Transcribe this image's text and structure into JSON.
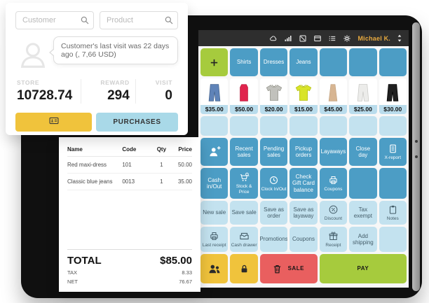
{
  "customer_card": {
    "customer_placeholder": "Customer",
    "product_placeholder": "Product",
    "tooltip": "Customer's last visit was 22 days ago (, 7,66 USD)",
    "stats": [
      {
        "label": "STORE",
        "value": "10728.74"
      },
      {
        "label": "REWARD",
        "value": "294"
      },
      {
        "label": "VISIT",
        "value": "0"
      }
    ],
    "purchases_label": "PURCHASES",
    "card_button_icon": "id-card-icon"
  },
  "receipt": {
    "columns": [
      "Name",
      "Code",
      "Qty",
      "Price"
    ],
    "rows": [
      {
        "name": "Red maxi-dress",
        "code": "101",
        "qty": "1",
        "price": "50.00"
      },
      {
        "name": "Classic blue jeans",
        "code": "0013",
        "qty": "1",
        "price": "35.00"
      }
    ],
    "total_label": "TOTAL",
    "total_value": "$85.00",
    "tax_label": "TAX",
    "tax_value": "8.33",
    "net_label": "NET",
    "net_value": "76.67"
  },
  "tablet": {
    "statusbar": {
      "icons": [
        "cloud",
        "signal",
        "display",
        "dock",
        "list",
        "gear"
      ],
      "user": "Michael K."
    },
    "grid_rows": [
      {
        "tiles": [
          {
            "type": "green",
            "icon": "plus"
          },
          {
            "type": "dark",
            "label": "Shirts"
          },
          {
            "type": "dark",
            "label": "Dresses"
          },
          {
            "type": "dark",
            "label": "Jeans"
          },
          {
            "type": "dark"
          },
          {
            "type": "dark"
          },
          {
            "type": "dark"
          }
        ]
      },
      {
        "tiles": [
          {
            "type": "product",
            "image": "jeans-blue",
            "price": "$35.00"
          },
          {
            "type": "product",
            "image": "dress-red",
            "price": "$50.00"
          },
          {
            "type": "product",
            "image": "polo-gray",
            "price": "$20.00"
          },
          {
            "type": "product",
            "image": "tshirt-yellow",
            "price": "$15.00"
          },
          {
            "type": "product",
            "image": "skirt-beige",
            "price": "$45.00"
          },
          {
            "type": "product",
            "image": "pants-white",
            "price": "$25.00"
          },
          {
            "type": "product",
            "image": "pants-black",
            "price": "$30.00"
          }
        ]
      },
      {
        "tiles": [
          {
            "type": "light"
          },
          {
            "type": "light"
          },
          {
            "type": "light"
          },
          {
            "type": "light"
          },
          {
            "type": "light"
          },
          {
            "type": "light"
          },
          {
            "type": "light"
          }
        ]
      },
      {
        "tiles": [
          {
            "type": "dark",
            "icon": "person-plus",
            "big": true
          },
          {
            "type": "dark",
            "label": "Recent sales"
          },
          {
            "type": "dark",
            "label": "Pending sales"
          },
          {
            "type": "dark",
            "label": "Pickup orders"
          },
          {
            "type": "dark",
            "label": "Layaways"
          },
          {
            "type": "dark",
            "label": "Close day"
          },
          {
            "type": "dark",
            "icon": "document",
            "label": "X-report",
            "labelStyle": "sub"
          }
        ]
      },
      {
        "tiles": [
          {
            "type": "dark",
            "label": "Cash in/Out"
          },
          {
            "type": "dark",
            "icon": "cart-search",
            "label": "Stock & Price",
            "labelStyle": "sub"
          },
          {
            "type": "dark",
            "icon": "clock",
            "label": "Clock In/Out",
            "labelStyle": "sub"
          },
          {
            "type": "dark",
            "label": "Check Gift Card balance"
          },
          {
            "type": "dark",
            "icon": "printer",
            "label": "Coupons",
            "labelStyle": "sub"
          },
          {
            "type": "dark"
          },
          {
            "type": "dark"
          }
        ]
      },
      {
        "tiles": [
          {
            "type": "light",
            "label": "New sale"
          },
          {
            "type": "light",
            "label": "Save sale"
          },
          {
            "type": "light",
            "label": "Save as order"
          },
          {
            "type": "light",
            "label": "Save as layaway"
          },
          {
            "type": "light",
            "icon": "percent",
            "label": "Discount",
            "labelStyle": "sub"
          },
          {
            "type": "light",
            "label": "Tax exempt"
          },
          {
            "type": "light",
            "icon": "clipboard",
            "label": "Notes",
            "labelStyle": "sub"
          }
        ]
      },
      {
        "tiles": [
          {
            "type": "light",
            "icon": "printer",
            "label": "Last receipt",
            "labelStyle": "sub"
          },
          {
            "type": "light",
            "icon": "cash-drawer",
            "label": "Cash drawer",
            "labelStyle": "sub"
          },
          {
            "type": "light",
            "label": "Promotions"
          },
          {
            "type": "light",
            "label": "Coupons"
          },
          {
            "type": "light",
            "icon": "gift",
            "label": "Receipt",
            "labelStyle": "sub"
          },
          {
            "type": "light",
            "label": "Add shipping"
          },
          {
            "type": "light"
          }
        ]
      },
      {
        "tiles": [
          {
            "type": "yellow",
            "icon": "people",
            "big": true
          },
          {
            "type": "yellow",
            "icon": "lock"
          },
          {
            "type": "red",
            "icon": "trash",
            "label": "SALE",
            "span": 2
          },
          {
            "type": "pay",
            "label": "PAY",
            "span": 3
          }
        ]
      }
    ]
  },
  "colors": {
    "tile_dark": "#4c9dc5",
    "tile_light": "#c3e2ef",
    "accent_green": "#a6cb3d",
    "accent_yellow": "#f0c33c",
    "accent_red": "#e95f5f",
    "statusbar": "#2e2e2e",
    "user_text": "#e6a93f",
    "price_band": "#b9dcec"
  }
}
